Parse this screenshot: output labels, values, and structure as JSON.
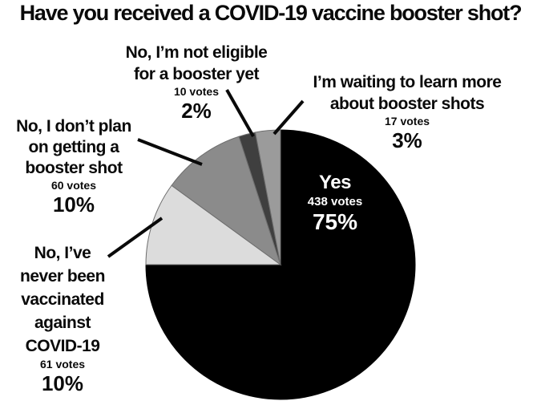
{
  "title": "Have you received a COVID-19 vaccine booster shot?",
  "chart_data": {
    "type": "pie",
    "title": "Have you received a COVID-19 vaccine booster shot?",
    "direction": "clockwise",
    "start_angle_deg": 0,
    "legend_position": "labels-around-pie",
    "colors": {
      "background": "#ffffff",
      "text": "#0a0a0a",
      "inside_label_text": "#ffffff",
      "slice_outline": "#6e6e6e"
    },
    "slices": [
      {
        "label": "Yes",
        "label_lines": [
          "Yes"
        ],
        "votes": 438,
        "votes_text": "438 votes",
        "percent": 75,
        "percent_text": "75%",
        "color": "#000000"
      },
      {
        "label": "No, I’ve never been vaccinated against COVID-19",
        "label_lines": [
          "No, I’ve",
          "never been",
          "vaccinated",
          "against",
          "COVID-19"
        ],
        "votes": 61,
        "votes_text": "61 votes",
        "percent": 10,
        "percent_text": "10%",
        "color": "#dcdcdc"
      },
      {
        "label": "No, I’t don’t plan on getting a booster shot",
        "label_lines": [
          "No, I don’t plan",
          "on getting a",
          "booster shot"
        ],
        "votes": 60,
        "votes_text": "60 votes",
        "percent": 10,
        "percent_text": "10%",
        "color": "#8b8b8b"
      },
      {
        "label": "No, I’m not eligible for a booster yet",
        "label_lines": [
          "No, I’m not eligible",
          "for a booster yet"
        ],
        "votes": 10,
        "votes_text": "10 votes",
        "percent": 2,
        "percent_text": "2%",
        "color": "#3f3f3f"
      },
      {
        "label": "I’m waiting to learn more about booster shots",
        "label_lines": [
          "I’m waiting to learn more",
          "about booster shots"
        ],
        "votes": 17,
        "votes_text": "17 votes",
        "percent": 3,
        "percent_text": "3%",
        "color": "#9b9b9b"
      }
    ]
  }
}
